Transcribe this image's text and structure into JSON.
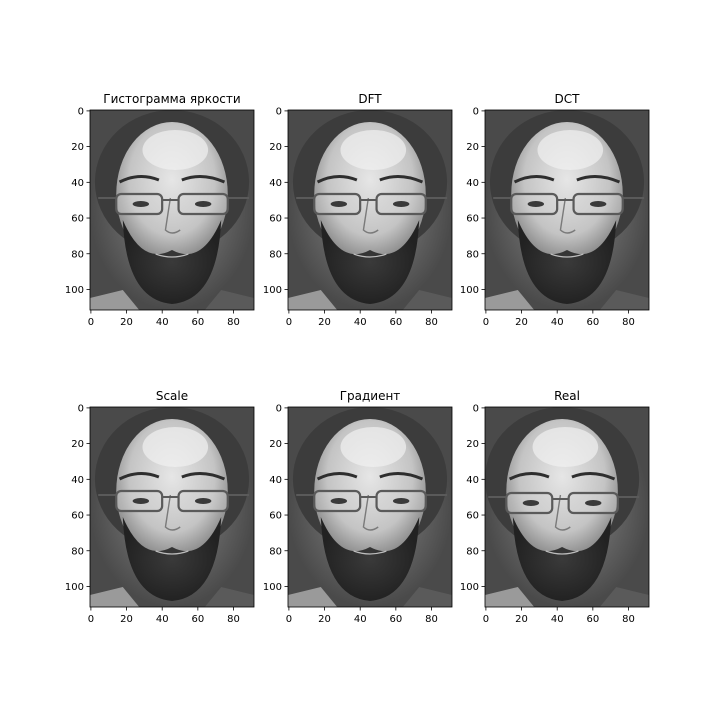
{
  "chart_data": [
    {
      "type": "image",
      "title": "Гистограмма яркости",
      "xticks": [
        0,
        20,
        40,
        60,
        80
      ],
      "yticks": [
        0,
        20,
        40,
        60,
        80,
        100
      ],
      "xlim": [
        -0.5,
        91.5
      ],
      "ylim": [
        111.5,
        -0.5
      ],
      "image_shape": [
        112,
        92
      ],
      "colormap": "gray",
      "image": "grayscale face of a bearded man with glasses"
    },
    {
      "type": "image",
      "title": "DFT",
      "xticks": [
        0,
        20,
        40,
        60,
        80
      ],
      "yticks": [
        0,
        20,
        40,
        60,
        80,
        100
      ],
      "xlim": [
        -0.5,
        91.5
      ],
      "ylim": [
        111.5,
        -0.5
      ],
      "image_shape": [
        112,
        92
      ],
      "colormap": "gray",
      "image": "grayscale face of a bearded man with glasses"
    },
    {
      "type": "image",
      "title": "DCT",
      "xticks": [
        0,
        20,
        40,
        60,
        80
      ],
      "yticks": [
        0,
        20,
        40,
        60,
        80,
        100
      ],
      "xlim": [
        -0.5,
        91.5
      ],
      "ylim": [
        111.5,
        -0.5
      ],
      "image_shape": [
        112,
        92
      ],
      "colormap": "gray",
      "image": "grayscale face of a bearded man with glasses"
    },
    {
      "type": "image",
      "title": "Scale",
      "xticks": [
        0,
        20,
        40,
        60,
        80
      ],
      "yticks": [
        0,
        20,
        40,
        60,
        80,
        100
      ],
      "xlim": [
        -0.5,
        91.5
      ],
      "ylim": [
        111.5,
        -0.5
      ],
      "image_shape": [
        112,
        92
      ],
      "colormap": "gray",
      "image": "grayscale face of a bearded man with glasses"
    },
    {
      "type": "image",
      "title": "Градиент",
      "xticks": [
        0,
        20,
        40,
        60,
        80
      ],
      "yticks": [
        0,
        20,
        40,
        60,
        80,
        100
      ],
      "xlim": [
        -0.5,
        91.5
      ],
      "ylim": [
        111.5,
        -0.5
      ],
      "image_shape": [
        112,
        92
      ],
      "colormap": "gray",
      "image": "grayscale face of a bearded man with glasses"
    },
    {
      "type": "image",
      "title": "Real",
      "xticks": [
        0,
        20,
        40,
        60,
        80
      ],
      "yticks": [
        0,
        20,
        40,
        60,
        80,
        100
      ],
      "xlim": [
        -0.5,
        91.5
      ],
      "ylim": [
        111.5,
        -0.5
      ],
      "image_shape": [
        112,
        92
      ],
      "colormap": "gray",
      "image": "grayscale face of a bearded man with glasses, looking slightly to the side"
    }
  ]
}
